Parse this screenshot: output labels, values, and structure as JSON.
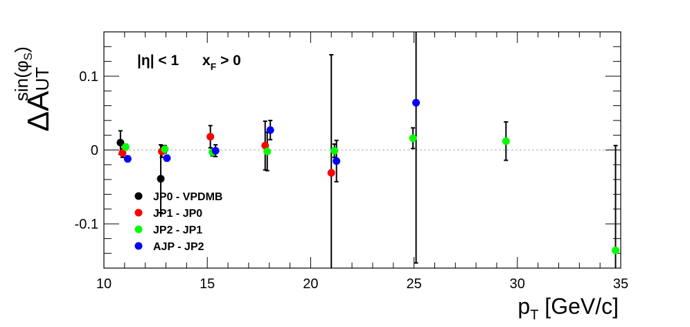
{
  "chart_data": {
    "type": "scatter",
    "x_label": {
      "main": "p",
      "sub": "T",
      "rest": " [GeV/c]"
    },
    "y_label": {
      "main": "ΔA",
      "sub": "UT",
      "sup_open": "sin(φ",
      "sup_sub": "S",
      "sup_close": ")"
    },
    "annotation": {
      "eta": "|η| < 1",
      "xf_main": "x",
      "xf_sub": "F",
      "xf_rest": " > 0"
    },
    "xlim": [
      10,
      35
    ],
    "ylim": [
      -0.16,
      0.16
    ],
    "x_ticks": [
      10,
      15,
      20,
      25,
      30,
      35
    ],
    "y_ticks": [
      -0.1,
      0,
      0.1
    ],
    "x_tick_labels": [
      "10",
      "15",
      "20",
      "25",
      "30",
      "35"
    ],
    "y_tick_labels": [
      "-0.1",
      "0",
      "0.1"
    ],
    "zero_line": true,
    "legend_position": "bottom-left",
    "series": [
      {
        "name": "JP0 - VPDMB",
        "color": "#000000",
        "points": [
          {
            "x": 10.8,
            "y": 0.01,
            "err": 0.016
          },
          {
            "x": 12.75,
            "y": -0.039,
            "err": 0.046
          }
        ]
      },
      {
        "name": "JP1 - JP0",
        "color": "#ff0000",
        "points": [
          {
            "x": 10.9,
            "y": -0.004,
            "err": 0.006
          },
          {
            "x": 12.8,
            "y": -0.002,
            "err": 0.008
          },
          {
            "x": 15.15,
            "y": 0.018,
            "err": 0.015
          },
          {
            "x": 17.8,
            "y": 0.006,
            "err": 0.033
          },
          {
            "x": 21.0,
            "y": -0.031,
            "err": 0.16
          }
        ]
      },
      {
        "name": "JP2 - JP1",
        "color": "#00ff00",
        "points": [
          {
            "x": 11.05,
            "y": 0.004,
            "err": 0.004
          },
          {
            "x": 12.95,
            "y": 0.001,
            "err": 0.005
          },
          {
            "x": 15.25,
            "y": -0.003,
            "err": 0.005
          },
          {
            "x": 17.9,
            "y": -0.002,
            "err": 0.026
          },
          {
            "x": 21.15,
            "y": -0.001,
            "err": 0.009
          },
          {
            "x": 24.95,
            "y": 0.016,
            "err": 0.014
          },
          {
            "x": 29.45,
            "y": 0.012,
            "err": 0.026
          },
          {
            "x": 34.75,
            "y": -0.136,
            "err": 0.142
          }
        ]
      },
      {
        "name": "AJP - JP2",
        "color": "#0000ff",
        "points": [
          {
            "x": 11.15,
            "y": -0.012,
            "err": 0.004
          },
          {
            "x": 13.05,
            "y": -0.011,
            "err": 0.004
          },
          {
            "x": 15.4,
            "y": -0.001,
            "err": 0.008
          },
          {
            "x": 18.05,
            "y": 0.027,
            "err": 0.013
          },
          {
            "x": 21.25,
            "y": -0.015,
            "err": 0.028
          },
          {
            "x": 25.1,
            "y": 0.064,
            "err": 0.217
          }
        ]
      }
    ]
  }
}
